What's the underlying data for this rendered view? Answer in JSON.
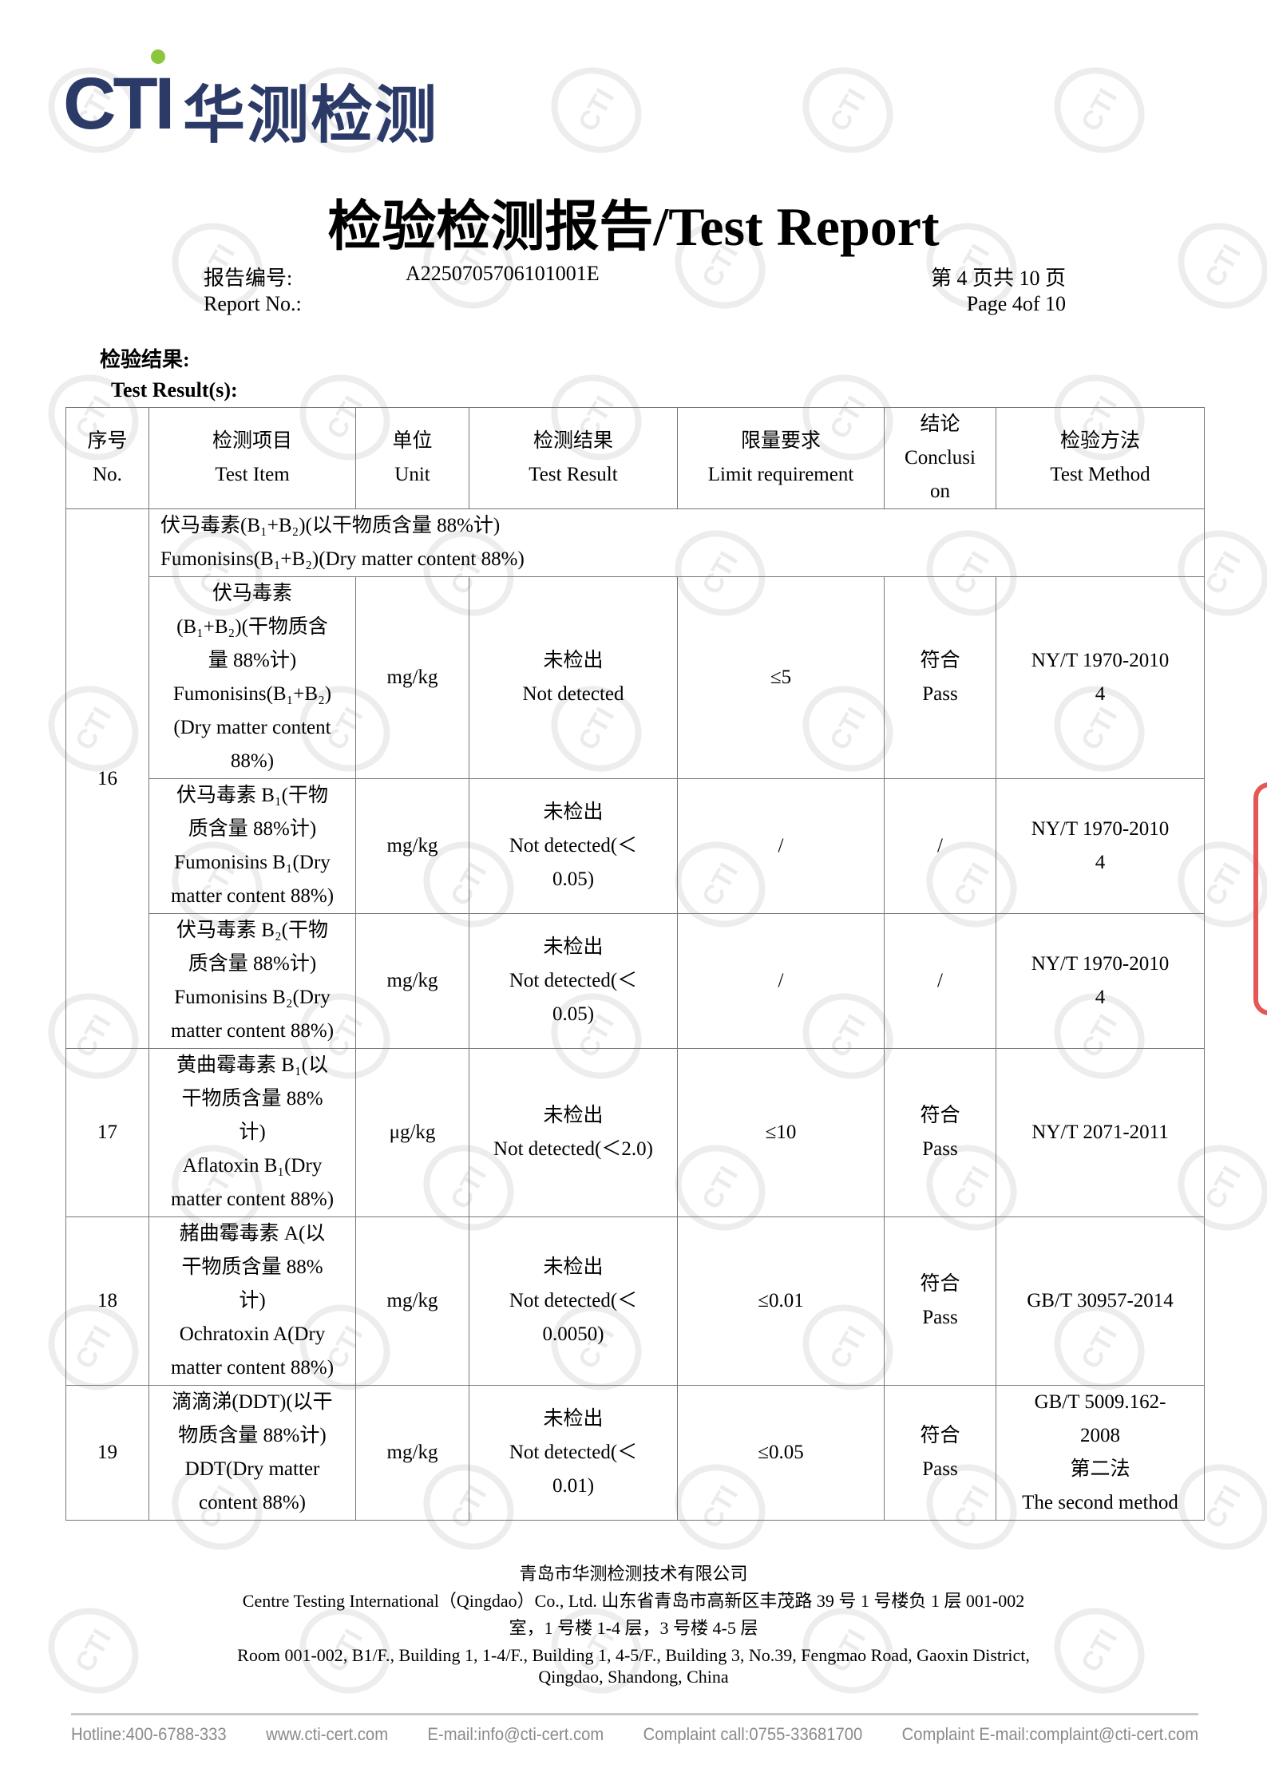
{
  "logo": {
    "latin": "CTI",
    "chinese": "华测检测"
  },
  "title": "检验检测报告/Test Report",
  "report_no": {
    "label_cn": "报告编号:",
    "label_en": "Report No.:",
    "value": "A2250705706101001E"
  },
  "page": {
    "cn": "第 4 页共 10 页",
    "en": "Page 4of 10"
  },
  "section": {
    "cn": "检验结果:",
    "en": "Test Result(s):"
  },
  "table": {
    "headers": [
      "序号\nNo.",
      "检测项目\nTest Item",
      "单位\nUnit",
      "检测结果\nTest Result",
      "限量要求\nLimit requirement",
      "结论\nConclusi\non",
      "检验方法\nTest Method"
    ],
    "group16": {
      "no": "16",
      "title": "伏马毒素(B₁+B₂)(以干物质含量 88%计)\nFumonisins(B₁+B₂)(Dry matter content 88%)",
      "rows": [
        {
          "item": "伏马毒素\n(B₁+B₂)(干物质含\n量 88%计)\nFumonisins(B₁+B₂)\n(Dry matter content\n88%)",
          "unit": "mg/kg",
          "result": "未检出\nNot detected",
          "limit": "≤5",
          "conclusion": "符合\nPass",
          "method": "NY/T 1970-2010\n4"
        },
        {
          "item": "伏马毒素 B₁(干物\n质含量 88%计)\nFumonisins B₁(Dry\nmatter content 88%)",
          "unit": "mg/kg",
          "result": "未检出\nNot detected(＜\n0.05)",
          "limit": "/",
          "conclusion": "/",
          "method": "NY/T 1970-2010\n4"
        },
        {
          "item": "伏马毒素 B₂(干物\n质含量 88%计)\nFumonisins B₂(Dry\nmatter content 88%)",
          "unit": "mg/kg",
          "result": "未检出\nNot detected(＜\n0.05)",
          "limit": "/",
          "conclusion": "/",
          "method": "NY/T 1970-2010\n4"
        }
      ]
    },
    "rows": [
      {
        "no": "17",
        "item": "黄曲霉毒素 B₁(以\n干物质含量 88%\n计)\nAflatoxin B₁(Dry\nmatter content 88%)",
        "unit": "μg/kg",
        "result": "未检出\nNot detected(＜2.0)",
        "limit": "≤10",
        "conclusion": "符合\nPass",
        "method": "NY/T 2071-2011"
      },
      {
        "no": "18",
        "item": "赭曲霉毒素 A(以\n干物质含量 88%\n计)\nOchratoxin A(Dry\nmatter content 88%)",
        "unit": "mg/kg",
        "result": "未检出\nNot detected(＜\n0.0050)",
        "limit": "≤0.01",
        "conclusion": "符合\nPass",
        "method": "GB/T 30957-2014"
      },
      {
        "no": "19",
        "item": "滴滴涕(DDT)(以干\n物质含量 88%计)\nDDT(Dry matter\ncontent 88%)",
        "unit": "mg/kg",
        "result": "未检出\nNot detected(＜\n0.01)",
        "limit": "≤0.05",
        "conclusion": "符合\nPass",
        "method": "GB/T 5009.162-\n2008\n第二法\nThe second method"
      }
    ]
  },
  "footer": {
    "company_cn": "青岛市华测检测技术有限公司",
    "line2": "Centre Testing International（Qingdao）Co., Ltd.  山东省青岛市高新区丰茂路 39 号 1 号楼负 1 层 001-002",
    "line3": "室，1 号楼 1-4 层，3 号楼 4-5 层",
    "line4": "Room 001-002, B1/F., Building 1, 1-4/F., Building 1, 4-5/F., Building 3, No.39, Fengmao Road, Gaoxin District,",
    "line5": "Qingdao, Shandong, China"
  },
  "contacts": [
    "Hotline:400-6788-333",
    "www.cti-cert.com",
    "E-mail:info@cti-cert.com",
    "Complaint call:0755-33681700",
    "Complaint E-mail:complaint@cti-cert.com"
  ],
  "colors": {
    "brand_blue": "#2b3a67",
    "brand_green": "#8cc63f",
    "stamp_red": "#e03a3a"
  }
}
